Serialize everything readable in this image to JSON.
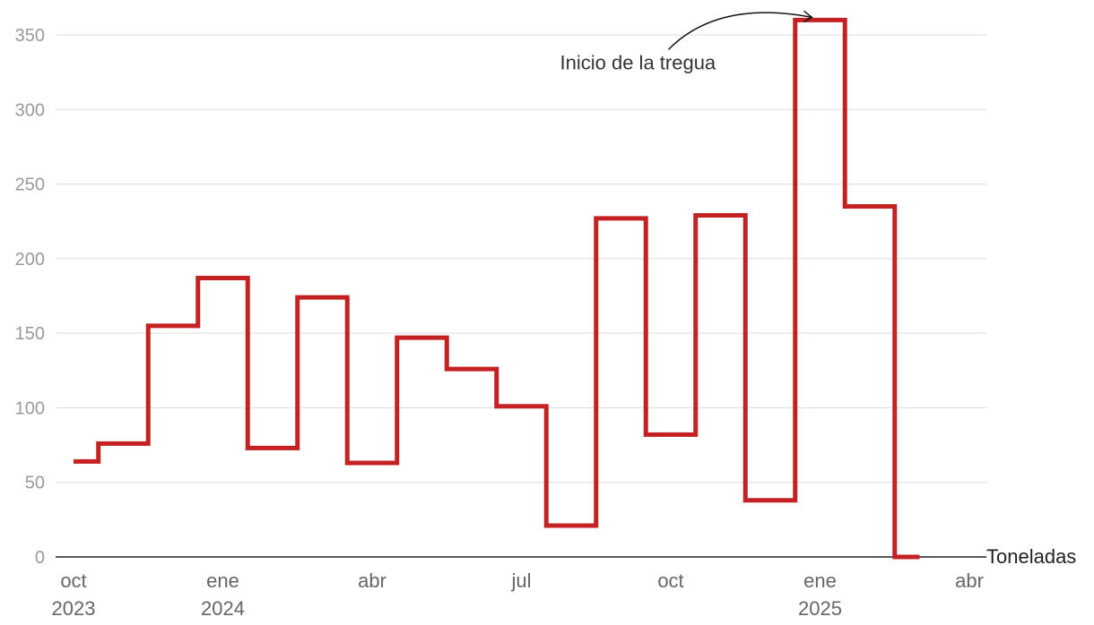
{
  "chart_data": {
    "type": "line",
    "step": true,
    "unit_label": "Toneladas",
    "color": "#c42222",
    "x": [
      "2023-10",
      "2023-11",
      "2023-12",
      "2024-01",
      "2024-02",
      "2024-03",
      "2024-04",
      "2024-05",
      "2024-06",
      "2024-07",
      "2024-08",
      "2024-09",
      "2024-10",
      "2024-11",
      "2024-12",
      "2025-01",
      "2025-02",
      "2025-03"
    ],
    "values": [
      64,
      76,
      155,
      187,
      73,
      174,
      63,
      147,
      126,
      101,
      21,
      227,
      82,
      229,
      38,
      360,
      235,
      0
    ],
    "ylim": [
      0,
      350
    ],
    "yticks": [
      0,
      50,
      100,
      150,
      200,
      250,
      300,
      350
    ],
    "xticks": [
      {
        "x": "2023-10",
        "line1": "oct",
        "line2": "2023"
      },
      {
        "x": "2024-01",
        "line1": "ene",
        "line2": "2024"
      },
      {
        "x": "2024-04",
        "line1": "abr",
        "line2": ""
      },
      {
        "x": "2024-07",
        "line1": "jul",
        "line2": ""
      },
      {
        "x": "2024-10",
        "line1": "oct",
        "line2": ""
      },
      {
        "x": "2025-01",
        "line1": "ene",
        "line2": "2025"
      },
      {
        "x": "2025-04",
        "line1": "abr",
        "line2": ""
      }
    ],
    "annotations": [
      {
        "text": "Inicio de la tregua",
        "x": "2025-01",
        "y": 360
      }
    ],
    "grid": true
  }
}
